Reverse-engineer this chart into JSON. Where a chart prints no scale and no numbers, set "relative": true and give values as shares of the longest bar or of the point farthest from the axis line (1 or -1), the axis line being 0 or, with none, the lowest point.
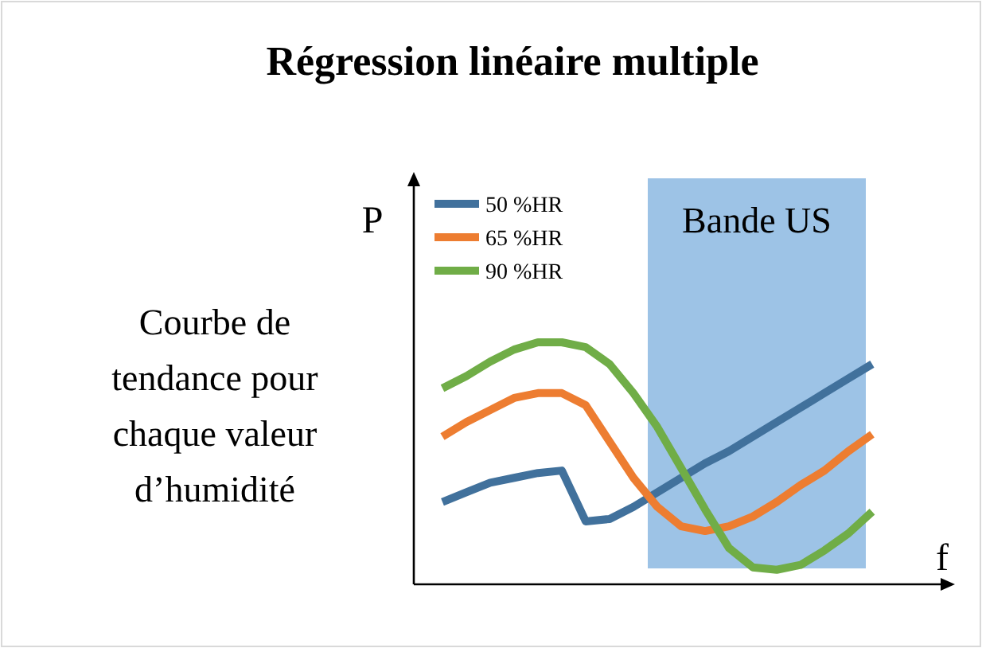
{
  "chart_data": {
    "type": "line",
    "title": "Régression linéaire multiple",
    "xlabel": "f",
    "ylabel": "P",
    "relative": true,
    "tick_labels": false,
    "legend": "top left",
    "marker": "none",
    "line_style": "solid",
    "categories": [
      null,
      null,
      null,
      null,
      null,
      null,
      null,
      null,
      null,
      null,
      null,
      null,
      null,
      null,
      null,
      null,
      null,
      null,
      null
    ],
    "annotations": [
      "Courbe de tendance pour chaque valeur d’humidité",
      "Bande US"
    ],
    "series": [
      {
        "name": "50 %HR",
        "color": "#41719c",
        "values": [
          0.34,
          0.38,
          0.42,
          0.44,
          0.46,
          0.47,
          0.26,
          0.27,
          0.32,
          0.38,
          0.44,
          0.5,
          0.55,
          0.61,
          0.67,
          0.73,
          0.79,
          0.85,
          0.91
        ]
      },
      {
        "name": "65 %HR",
        "color": "#ed7d31",
        "values": [
          0.61,
          0.67,
          0.72,
          0.77,
          0.79,
          0.79,
          0.74,
          0.59,
          0.44,
          0.32,
          0.24,
          0.22,
          0.24,
          0.28,
          0.34,
          0.41,
          0.47,
          0.55,
          0.62
        ]
      },
      {
        "name": "90 %HR",
        "color": "#70ad47",
        "values": [
          0.81,
          0.86,
          0.92,
          0.97,
          1.0,
          1.0,
          0.98,
          0.91,
          0.79,
          0.65,
          0.48,
          0.31,
          0.15,
          0.07,
          0.06,
          0.08,
          0.14,
          0.21,
          0.3
        ]
      }
    ]
  }
}
